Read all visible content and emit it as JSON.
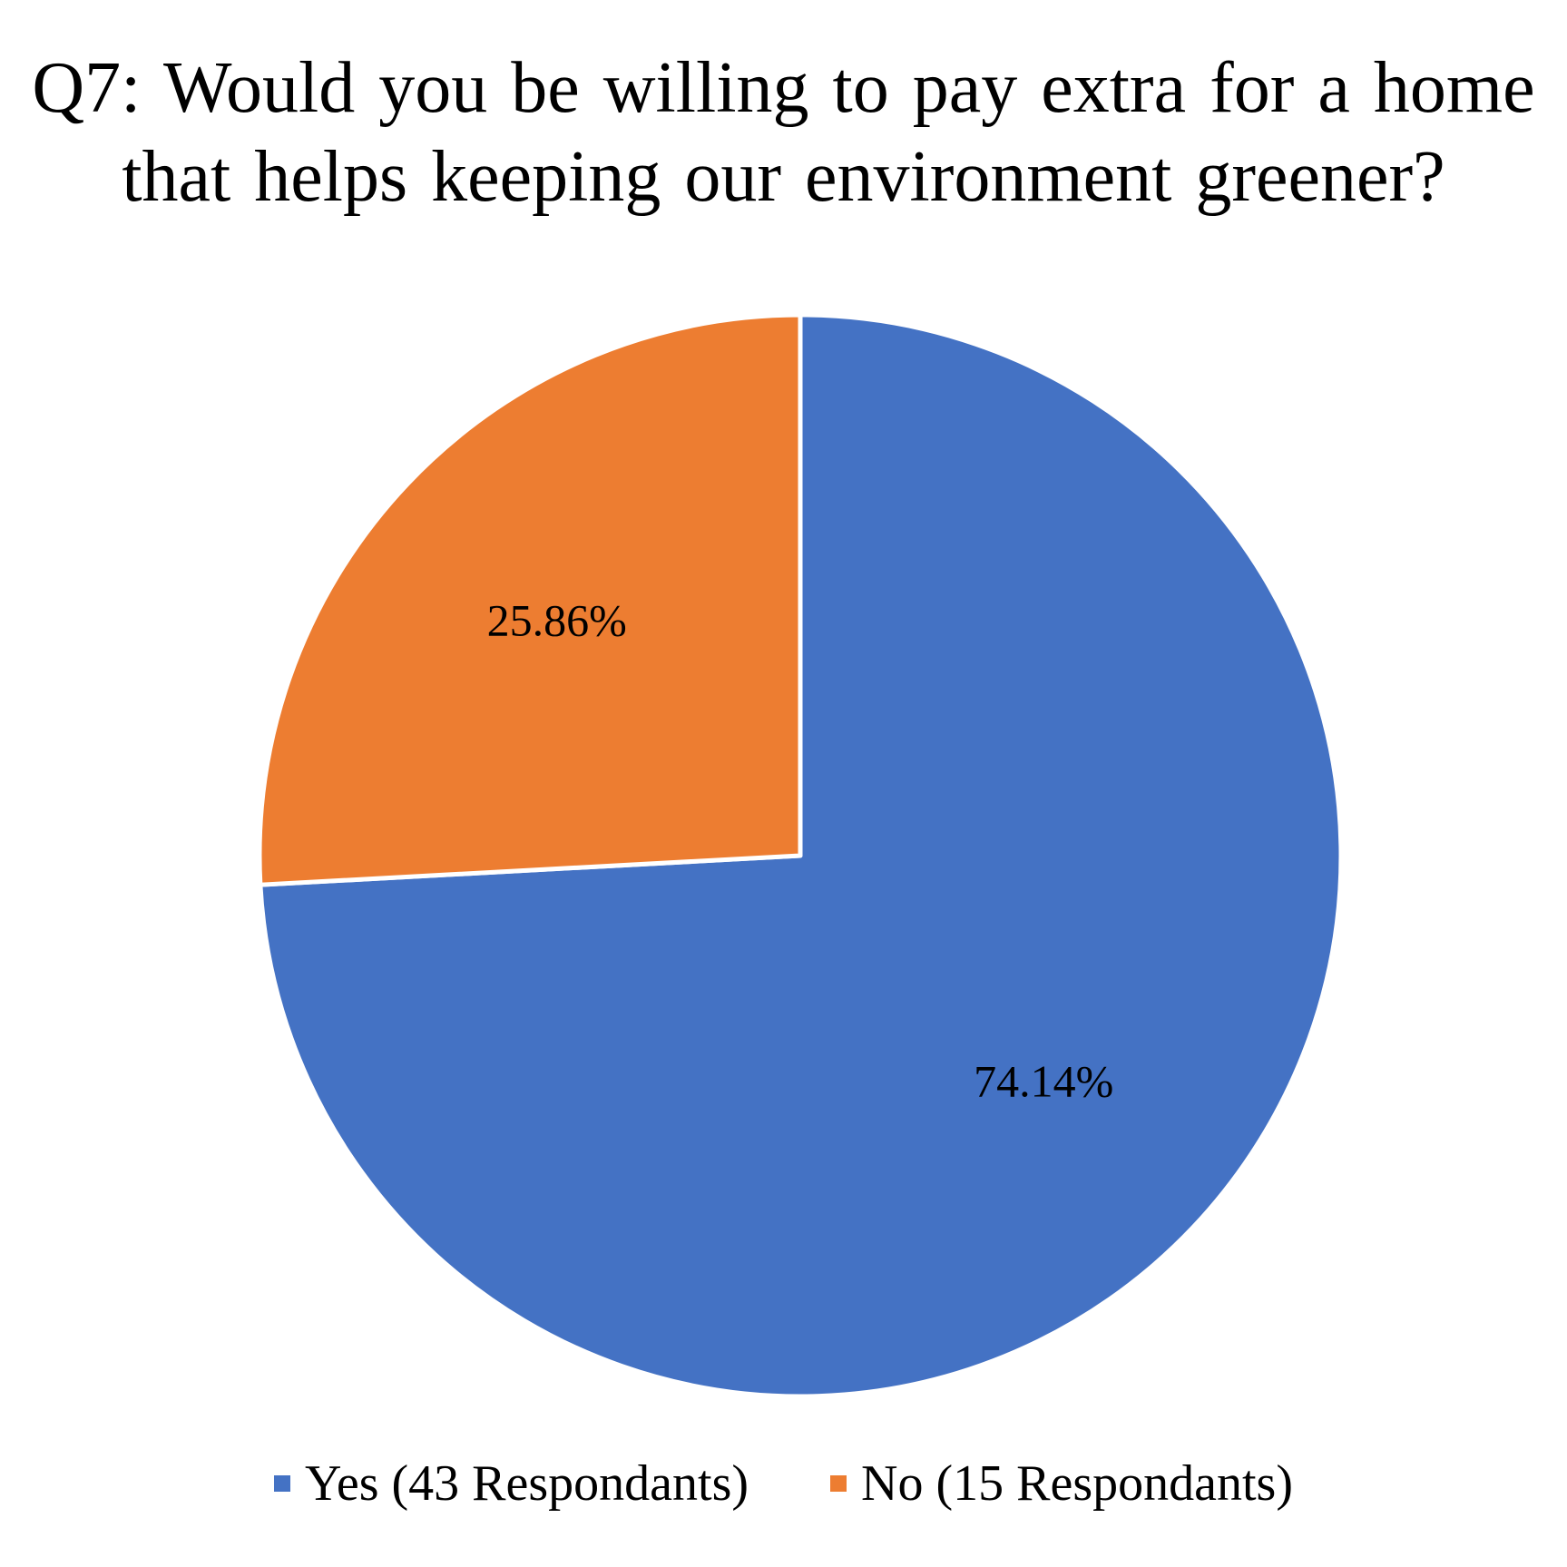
{
  "chart_data": {
    "type": "pie",
    "title_lines": [
      "Q7: Would you be willing to pay extra for a home",
      "that helps keeping our environment greener?"
    ],
    "slices": [
      {
        "name": "Yes (43 Respondants)",
        "value": 74.14,
        "label": "74.14%",
        "color": "#4472C4"
      },
      {
        "name": "No (15 Respondants)",
        "value": 25.86,
        "label": "25.86%",
        "color": "#ED7D31"
      }
    ],
    "legend_position": "bottom"
  }
}
